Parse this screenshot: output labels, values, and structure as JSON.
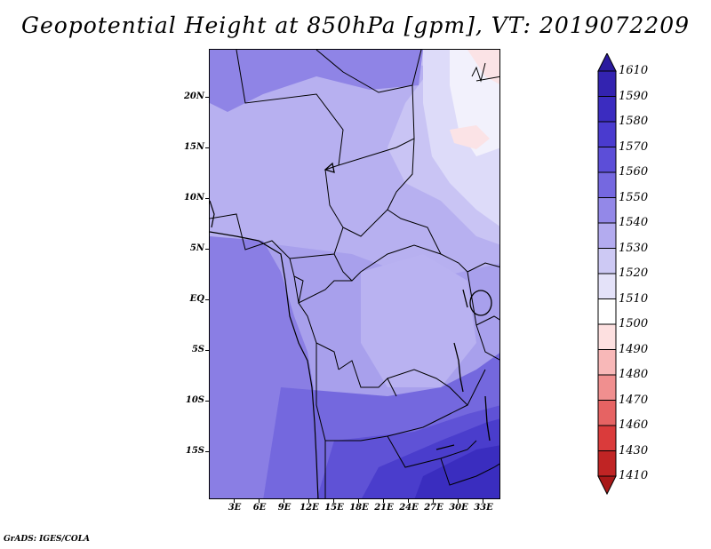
{
  "title": "Geopotential Height at 850hPa [gpm], VT: 2019072209",
  "footer": "GrADS: IGES/COLA",
  "lat_labels": [
    "20N",
    "15N",
    "10N",
    "5N",
    "EQ",
    "5S",
    "10S",
    "15S"
  ],
  "lon_labels": [
    "3E",
    "6E",
    "9E",
    "12E",
    "15E",
    "18E",
    "21E",
    "24E",
    "27E",
    "30E",
    "33E"
  ],
  "colorbar": {
    "levels": [
      "1610",
      "1590",
      "1580",
      "1570",
      "1560",
      "1550",
      "1540",
      "1530",
      "1520",
      "1510",
      "1500",
      "1490",
      "1480",
      "1470",
      "1460",
      "1430",
      "1410"
    ],
    "colors": [
      "#2a1a9e",
      "#3323b0",
      "#3b2cc0",
      "#4a3bcf",
      "#5c4ed8",
      "#7568e0",
      "#9388e8",
      "#b3abef",
      "#cdc9f4",
      "#e4e2f9",
      "#ffffff",
      "#fde0e0",
      "#f8b8b8",
      "#f08f8f",
      "#e66363",
      "#da3b3b",
      "#c02424",
      "#a81818"
    ]
  },
  "map": {
    "domain": "Central Africa",
    "lat_range": [
      -20,
      25
    ],
    "lon_range": [
      0,
      36
    ],
    "field": "geopotential height 850hPa"
  }
}
